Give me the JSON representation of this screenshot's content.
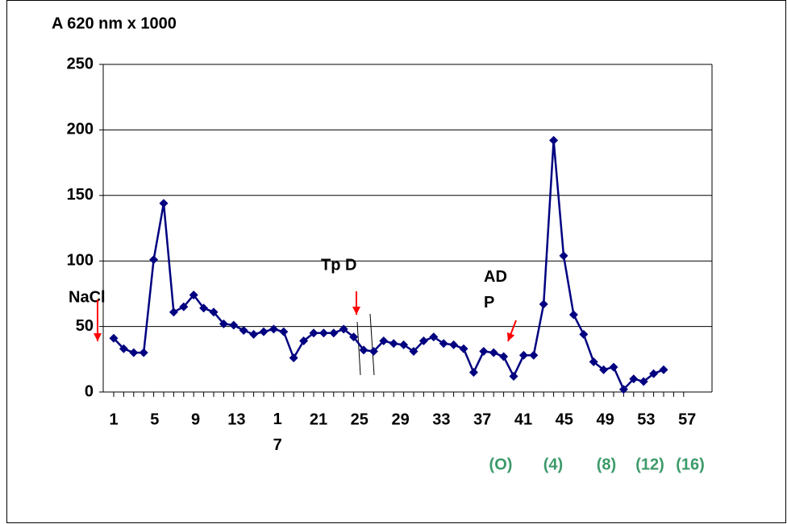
{
  "chart_data": {
    "type": "line",
    "y_axis_title": "A 620 nm x 1000",
    "categories": [
      "1",
      null,
      null,
      null,
      "5",
      null,
      null,
      null,
      "9",
      null,
      null,
      null,
      "13",
      null,
      null,
      null,
      "1\n7",
      null,
      null,
      null,
      "21",
      null,
      null,
      null,
      "25",
      null,
      null,
      null,
      "29",
      null,
      null,
      null,
      "33",
      null,
      null,
      null,
      "37",
      null,
      null,
      null,
      "41",
      null,
      null,
      null,
      "45",
      null,
      null,
      null,
      "49",
      null,
      null,
      null,
      "53",
      null,
      null,
      null,
      "57",
      null
    ],
    "series": [
      {
        "name": "A 620 nm x 1000",
        "color": "#000080",
        "values": [
          41,
          33,
          30,
          30,
          101,
          144,
          61,
          65,
          74,
          64,
          61,
          52,
          51,
          47,
          44,
          46,
          48,
          46,
          26,
          39,
          45,
          45,
          45,
          48,
          42,
          32,
          31,
          39,
          37,
          36,
          31,
          39,
          42,
          37,
          36,
          33,
          15,
          31,
          30,
          27,
          12,
          28,
          28,
          67,
          192,
          104,
          59,
          44,
          23,
          17,
          19,
          2,
          10,
          8,
          14,
          17,
          null,
          null
        ]
      }
    ],
    "ylim": [
      0,
      250
    ],
    "yticks": [
      0,
      50,
      100,
      150,
      200,
      250
    ],
    "grid": true,
    "secondary_labels": [
      "(O)",
      "(4)",
      "(8)",
      "(12)",
      "(16)"
    ],
    "secondary_label_color": "#3c9a6a",
    "annotations": [
      "NaCl",
      "Tp D",
      "AD\nP"
    ],
    "annotation_arrow_color": "#ff0000"
  }
}
